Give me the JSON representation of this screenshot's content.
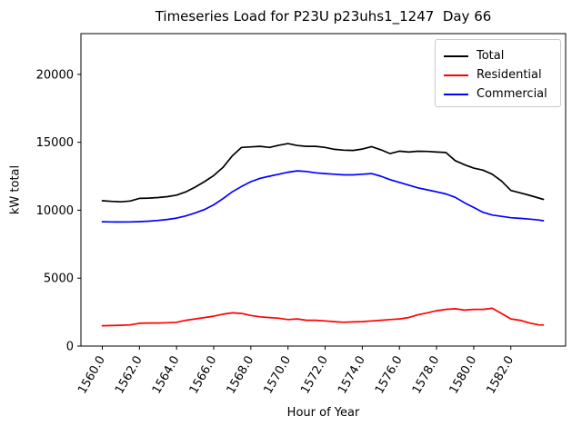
{
  "chart_data": {
    "type": "line",
    "title": "Timeseries Load for P23U p23uhs1_1247  Day 66",
    "xlabel": "Hour of Year",
    "ylabel": "kW total",
    "xlim": [
      1558.85,
      1584.95
    ],
    "ylim": [
      0,
      23000
    ],
    "grid": false,
    "legend_position": "upper right",
    "xticks": [
      1560,
      1562,
      1564,
      1566,
      1568,
      1570,
      1572,
      1574,
      1576,
      1578,
      1580,
      1582
    ],
    "xtick_labels": [
      "1560.0",
      "1562.0",
      "1564.0",
      "1566.0",
      "1568.0",
      "1570.0",
      "1572.0",
      "1574.0",
      "1576.0",
      "1578.0",
      "1580.0",
      "1582.0"
    ],
    "xtick_rotation": 60,
    "yticks": [
      0,
      5000,
      10000,
      15000,
      20000
    ],
    "ytick_labels": [
      "0",
      "5000",
      "10000",
      "15000",
      "20000"
    ],
    "x": [
      1560,
      1560.5,
      1561,
      1561.5,
      1562,
      1562.5,
      1563,
      1563.5,
      1564,
      1564.5,
      1565,
      1565.5,
      1566,
      1566.5,
      1567,
      1567.5,
      1568,
      1568.5,
      1569,
      1569.5,
      1570,
      1570.5,
      1571,
      1571.5,
      1572,
      1572.5,
      1573,
      1573.5,
      1574,
      1574.5,
      1575,
      1575.5,
      1576,
      1576.5,
      1577,
      1577.5,
      1578,
      1578.5,
      1579,
      1579.5,
      1580,
      1580.5,
      1581,
      1581.5,
      1582,
      1582.5,
      1583,
      1583.5,
      1583.75
    ],
    "series": [
      {
        "name": "Total",
        "color": "#000000",
        "values": [
          10700,
          10650,
          10620,
          10680,
          10870,
          10890,
          10930,
          11000,
          11110,
          11350,
          11700,
          12100,
          12550,
          13150,
          14000,
          14620,
          14660,
          14700,
          14620,
          14780,
          14900,
          14760,
          14700,
          14700,
          14620,
          14480,
          14420,
          14400,
          14500,
          14680,
          14450,
          14170,
          14350,
          14280,
          14340,
          14330,
          14280,
          14250,
          13650,
          13350,
          13100,
          12950,
          12650,
          12150,
          11450,
          11280,
          11100,
          10900,
          10800
        ]
      },
      {
        "name": "Residential",
        "color": "#ff0000",
        "values": [
          1500,
          1510,
          1530,
          1560,
          1680,
          1700,
          1700,
          1720,
          1750,
          1900,
          2000,
          2100,
          2200,
          2350,
          2450,
          2400,
          2250,
          2150,
          2100,
          2050,
          1950,
          2000,
          1900,
          1900,
          1850,
          1800,
          1750,
          1780,
          1800,
          1850,
          1900,
          1950,
          2000,
          2100,
          2300,
          2450,
          2600,
          2700,
          2750,
          2650,
          2700,
          2700,
          2780,
          2400,
          2000,
          1900,
          1700,
          1560,
          1550
        ]
      },
      {
        "name": "Commercial",
        "color": "#0000ff",
        "values": [
          9150,
          9140,
          9130,
          9140,
          9160,
          9190,
          9250,
          9320,
          9420,
          9580,
          9800,
          10050,
          10400,
          10850,
          11350,
          11750,
          12100,
          12350,
          12500,
          12650,
          12800,
          12900,
          12850,
          12750,
          12700,
          12650,
          12600,
          12600,
          12650,
          12700,
          12500,
          12250,
          12050,
          11850,
          11650,
          11500,
          11350,
          11200,
          10950,
          10550,
          10200,
          9850,
          9650,
          9550,
          9450,
          9400,
          9350,
          9280,
          9230
        ]
      }
    ]
  }
}
